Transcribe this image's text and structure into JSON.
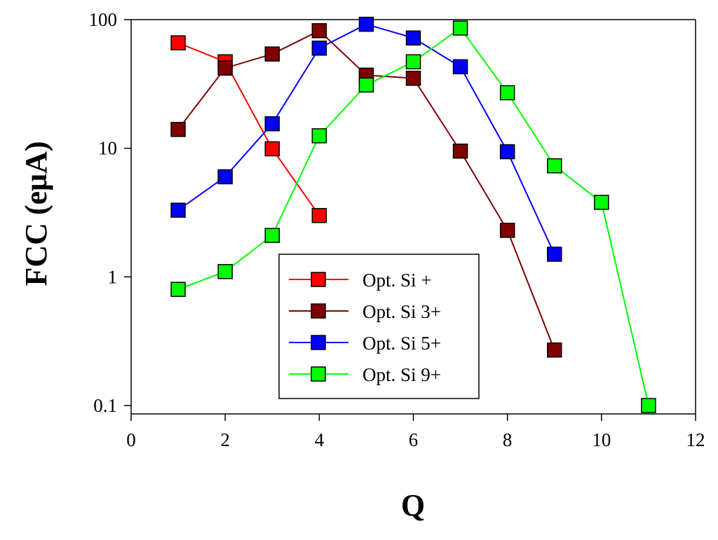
{
  "chart_data": {
    "type": "line",
    "title": "",
    "xlabel": "Q",
    "ylabel": "FCC (eμA)",
    "xlim": [
      0,
      12
    ],
    "ylim": [
      0.1,
      100
    ],
    "yscale": "log",
    "grid": false,
    "legend_position": "bottom-center",
    "x_ticks": [
      0,
      2,
      4,
      6,
      8,
      10,
      12
    ],
    "x_tick_labels": [
      "0",
      "2",
      "4",
      "6",
      "8",
      "10",
      "12"
    ],
    "y_ticks": [
      0.1,
      1,
      10,
      100
    ],
    "y_tick_labels": [
      "0.1",
      "1",
      "10",
      "100"
    ],
    "series": [
      {
        "name": "Opt. Si +",
        "color": "#ff0000",
        "x": [
          1,
          2,
          3,
          4
        ],
        "y": [
          66,
          47,
          9.9,
          3.0
        ]
      },
      {
        "name": "Opt. Si 3+",
        "color": "#800000",
        "x": [
          1,
          2,
          3,
          4,
          5,
          6,
          7,
          8,
          9
        ],
        "y": [
          14,
          42,
          54,
          82,
          37,
          35,
          9.5,
          2.3,
          0.27
        ]
      },
      {
        "name": "Opt. Si 5+",
        "color": "#0000ff",
        "x": [
          1,
          2,
          3,
          4,
          5,
          6,
          7,
          8,
          9
        ],
        "y": [
          3.3,
          6.0,
          15.5,
          60,
          92,
          72,
          43,
          9.4,
          1.5
        ]
      },
      {
        "name": "Opt. Si 9+",
        "color": "#00ff00",
        "x": [
          1,
          2,
          3,
          4,
          5,
          6,
          7,
          8,
          9,
          10,
          11
        ],
        "y": [
          0.8,
          1.1,
          2.1,
          12.5,
          31,
          47,
          86,
          27,
          7.3,
          3.8,
          0.1
        ]
      }
    ]
  }
}
